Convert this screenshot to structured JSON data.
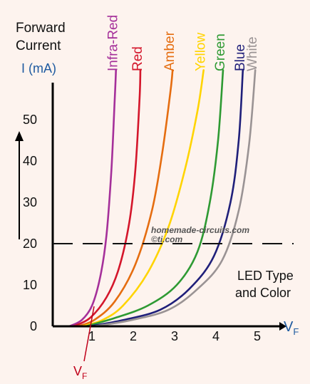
{
  "chart_data": {
    "type": "line",
    "title": "",
    "ylabel_lines": [
      "Forward",
      "Current"
    ],
    "ylabel_unit": "I (mA)",
    "xlabel": {
      "main": "V",
      "sub": "F"
    },
    "x_ticks": [
      "1",
      "2",
      "3",
      "4",
      "5"
    ],
    "y_ticks": [
      "0",
      "10",
      "20",
      "30",
      "40",
      "50"
    ],
    "xlim": [
      0,
      5.8
    ],
    "ylim": [
      0,
      60
    ],
    "threshold_line": {
      "y": 20,
      "style": "dashed"
    },
    "annotation_lines": [
      "LED Type",
      "and Color"
    ],
    "vf_marker": {
      "main": "V",
      "sub": "F",
      "x": 1
    },
    "watermark_lines": [
      "homemade-circuits.com",
      "©ti.com"
    ],
    "series": [
      {
        "name": "Infra-Red",
        "color": "#a5309a",
        "points": [
          [
            0.4,
            0
          ],
          [
            0.7,
            1.5
          ],
          [
            0.95,
            5
          ],
          [
            1.15,
            12
          ],
          [
            1.3,
            22
          ],
          [
            1.42,
            38
          ],
          [
            1.5,
            55
          ],
          [
            1.53,
            62
          ]
        ]
      },
      {
        "name": "Red",
        "color": "#d4162b",
        "points": [
          [
            0.5,
            0
          ],
          [
            0.9,
            2
          ],
          [
            1.3,
            7
          ],
          [
            1.6,
            14
          ],
          [
            1.85,
            25
          ],
          [
            2.0,
            38
          ],
          [
            2.1,
            55
          ],
          [
            2.12,
            62
          ]
        ]
      },
      {
        "name": "Amber",
        "color": "#e56d10",
        "points": [
          [
            0.6,
            0
          ],
          [
            1.0,
            1.5
          ],
          [
            1.5,
            6
          ],
          [
            2.0,
            15
          ],
          [
            2.4,
            28
          ],
          [
            2.65,
            42
          ],
          [
            2.85,
            57
          ],
          [
            2.9,
            62
          ]
        ]
      },
      {
        "name": "Yellow",
        "color": "#ffd400",
        "points": [
          [
            0.7,
            0
          ],
          [
            1.2,
            1.5
          ],
          [
            1.7,
            5
          ],
          [
            2.3,
            13
          ],
          [
            2.8,
            24
          ],
          [
            3.2,
            38
          ],
          [
            3.5,
            52
          ],
          [
            3.65,
            62
          ]
        ]
      },
      {
        "name": "Green",
        "color": "#2e9a33",
        "points": [
          [
            0.8,
            0
          ],
          [
            1.5,
            2
          ],
          [
            2.3,
            5
          ],
          [
            3.0,
            10
          ],
          [
            3.5,
            18
          ],
          [
            3.8,
            30
          ],
          [
            4.0,
            45
          ],
          [
            4.12,
            62
          ]
        ]
      },
      {
        "name": "Blue",
        "color": "#1f1f7a",
        "points": [
          [
            0.9,
            0
          ],
          [
            1.7,
            1.5
          ],
          [
            2.6,
            4
          ],
          [
            3.3,
            9
          ],
          [
            3.9,
            17
          ],
          [
            4.3,
            30
          ],
          [
            4.5,
            45
          ],
          [
            4.6,
            62
          ]
        ]
      },
      {
        "name": "White",
        "color": "#9a9394",
        "points": [
          [
            1.0,
            0
          ],
          [
            1.9,
            1.5
          ],
          [
            2.8,
            4
          ],
          [
            3.5,
            9
          ],
          [
            4.1,
            16
          ],
          [
            4.5,
            28
          ],
          [
            4.75,
            44
          ],
          [
            4.9,
            62
          ]
        ]
      }
    ]
  }
}
